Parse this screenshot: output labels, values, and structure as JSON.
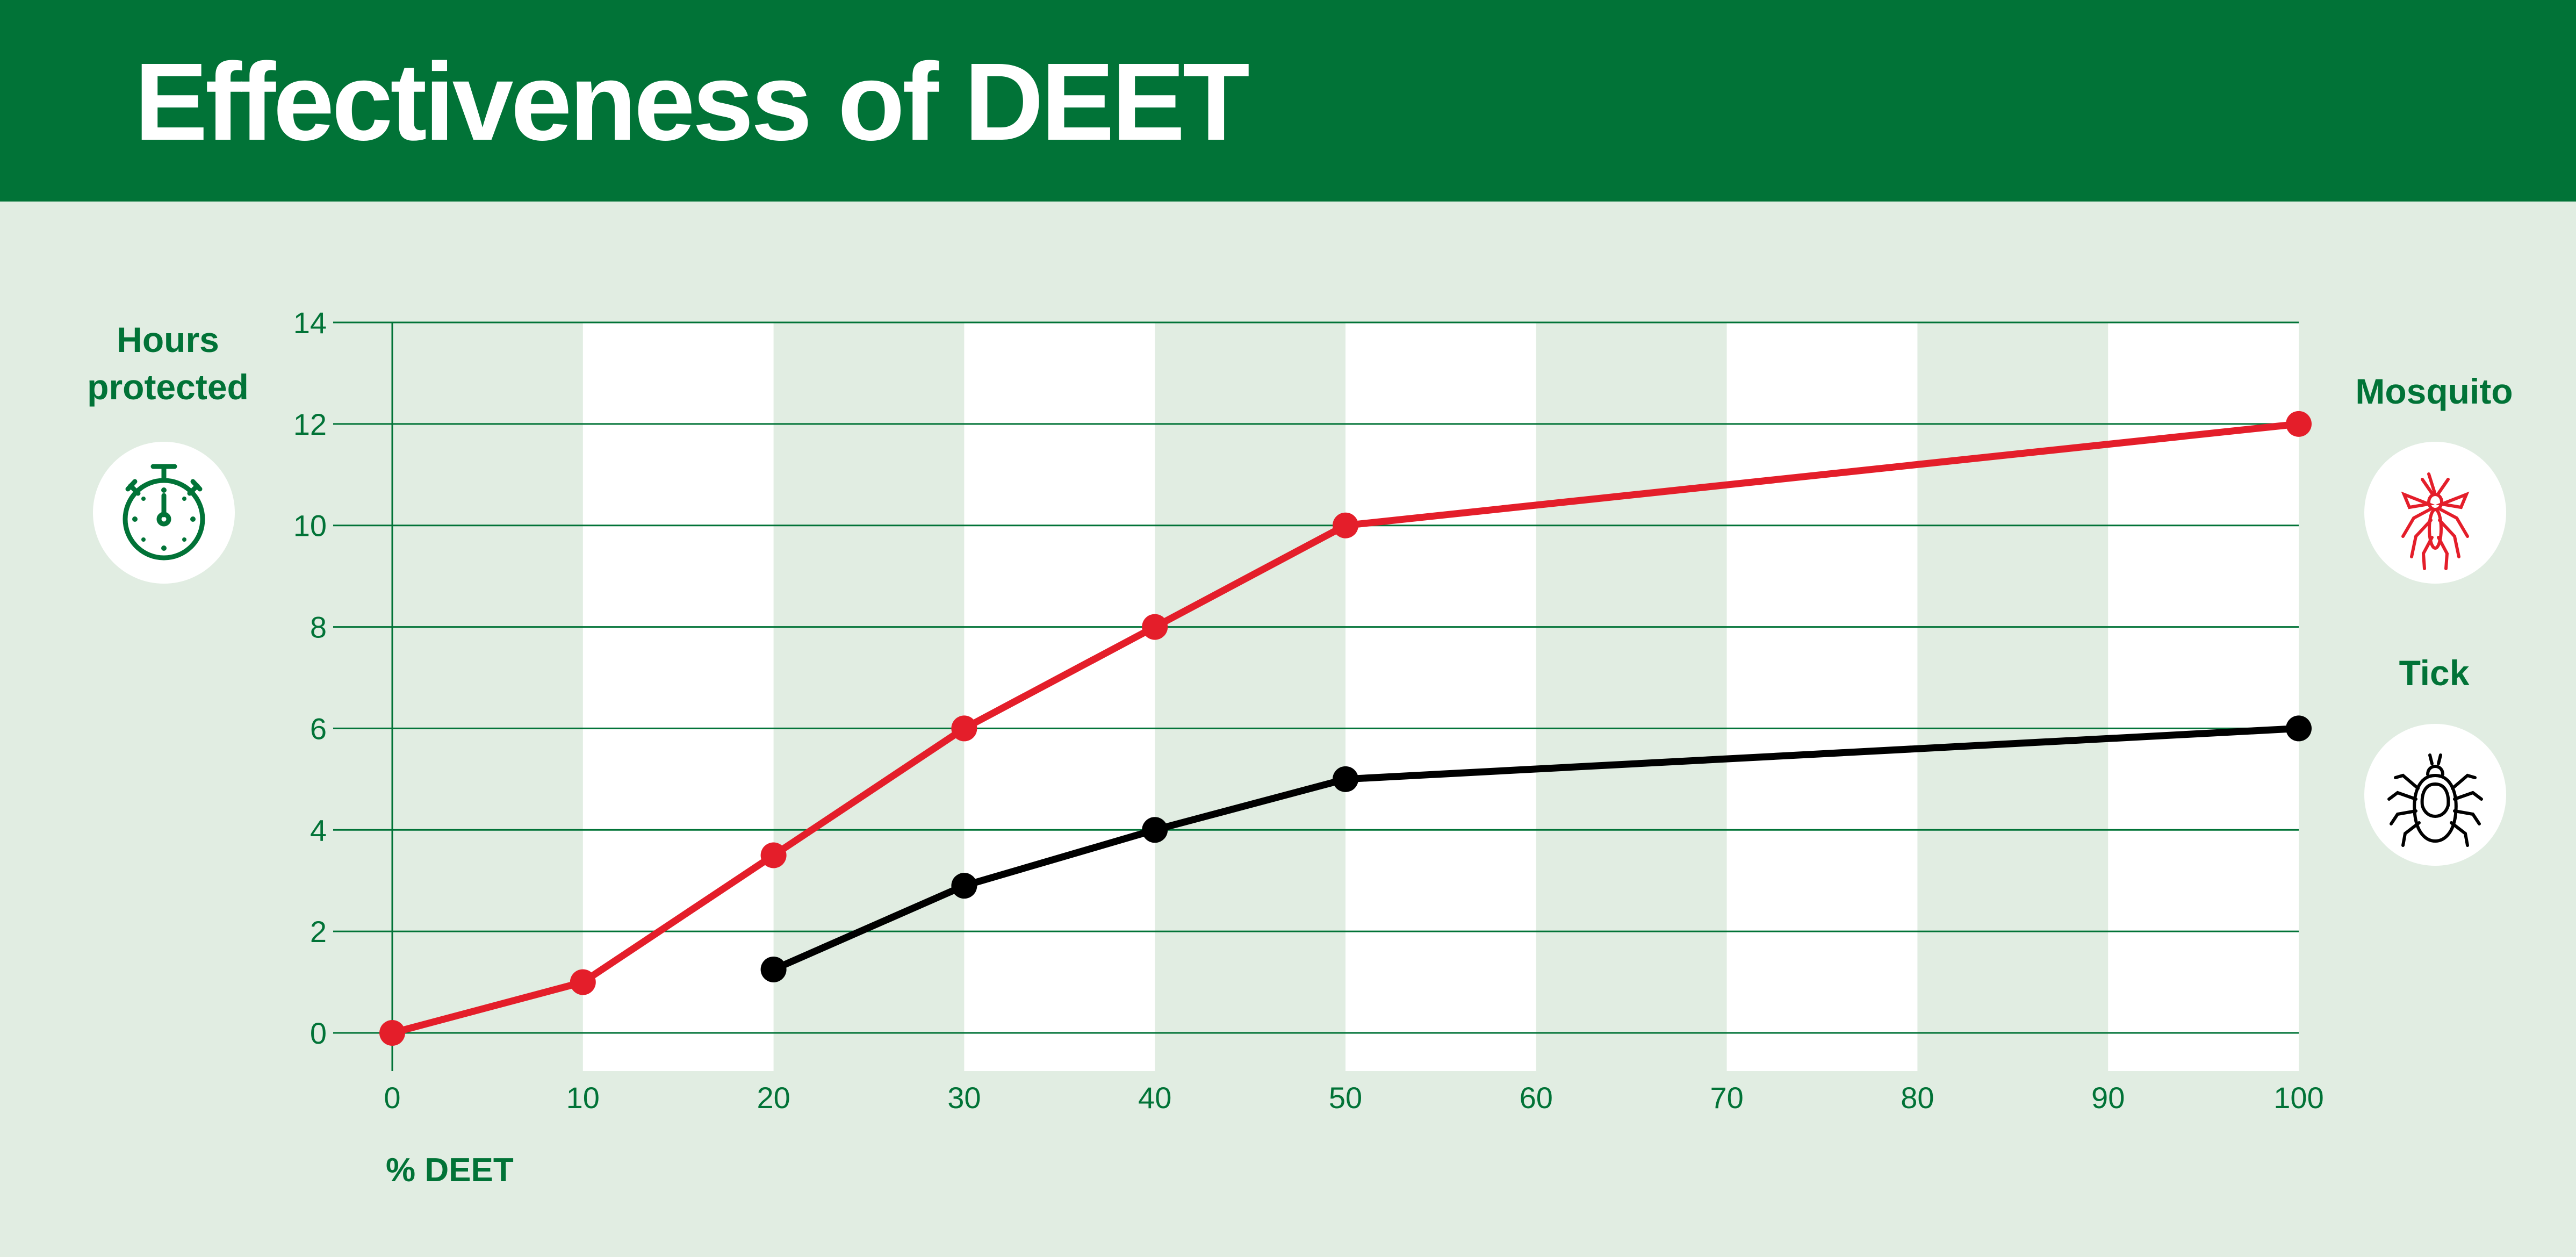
{
  "title": "Effectiveness of DEET",
  "y_axis_label_line1": "Hours",
  "y_axis_label_line2": "protected",
  "x_axis_label": "% DEET",
  "colors": {
    "header": "#017337",
    "background": "#e1ede2",
    "stripe": "#ffffff",
    "grid": "#017337",
    "mosquito": "#e41e2a",
    "tick": "#000000"
  },
  "icons": {
    "y_axis": "stopwatch-icon",
    "mosquito": "mosquito-icon",
    "tick": "tick-icon"
  },
  "chart_data": {
    "type": "line",
    "title": "Effectiveness of DEET",
    "xlabel": "% DEET",
    "ylabel": "Hours protected",
    "xlim": [
      0,
      100
    ],
    "ylim": [
      0,
      14
    ],
    "xticks": [
      0,
      10,
      20,
      30,
      40,
      50,
      60,
      70,
      80,
      90,
      100
    ],
    "yticks": [
      0,
      2,
      4,
      6,
      8,
      10,
      12,
      14
    ],
    "grid": "horizontal",
    "stripes": "alternating vertical bands every 10% DEET",
    "series": [
      {
        "name": "Mosquito",
        "color": "#e41e2a",
        "x": [
          0,
          10,
          20,
          30,
          40,
          50,
          100
        ],
        "y": [
          0,
          1,
          3.5,
          6,
          8,
          10,
          12
        ]
      },
      {
        "name": "Tick",
        "color": "#000000",
        "x": [
          20,
          30,
          40,
          50,
          100
        ],
        "y": [
          1.25,
          2.9,
          4,
          5,
          6
        ]
      }
    ]
  }
}
